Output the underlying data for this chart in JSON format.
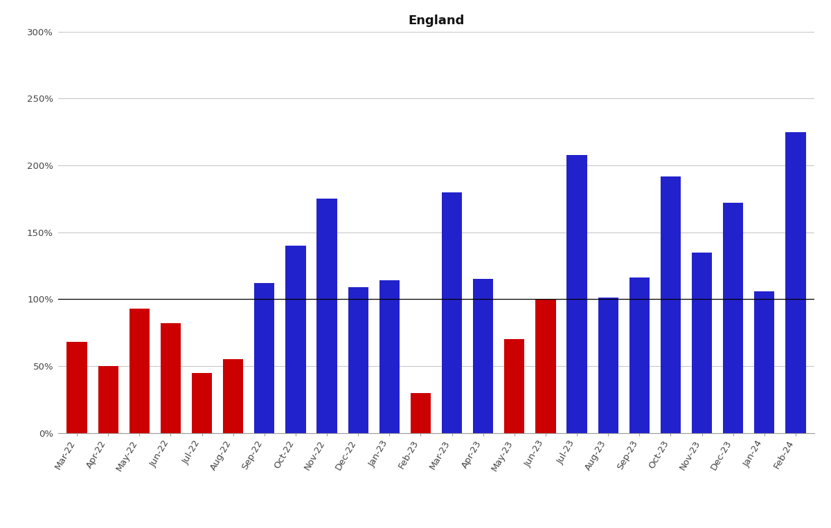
{
  "title": "England",
  "categories": [
    "Mar-22",
    "Apr-22",
    "May-22",
    "Jun-22",
    "Jul-22",
    "Aug-22",
    "Sep-22",
    "Oct-22",
    "Nov-22",
    "Dec-22",
    "Jan-23",
    "Feb-23",
    "Mar-23",
    "Apr-23",
    "May-23",
    "Jun-23",
    "Jul-23",
    "Aug-23",
    "Sep-23",
    "Oct-23",
    "Nov-23",
    "Dec-23",
    "Jan-24",
    "Feb-24"
  ],
  "values": [
    68,
    50,
    93,
    82,
    45,
    55,
    112,
    140,
    175,
    109,
    114,
    30,
    180,
    115,
    70,
    100,
    208,
    101,
    116,
    192,
    135,
    172,
    106,
    225
  ],
  "colors": [
    "#cc0000",
    "#cc0000",
    "#cc0000",
    "#cc0000",
    "#cc0000",
    "#cc0000",
    "#2222cc",
    "#2222cc",
    "#2222cc",
    "#2222cc",
    "#2222cc",
    "#cc0000",
    "#2222cc",
    "#2222cc",
    "#cc0000",
    "#cc0000",
    "#2222cc",
    "#2222cc",
    "#2222cc",
    "#2222cc",
    "#2222cc",
    "#2222cc",
    "#2222cc",
    "#2222cc"
  ],
  "ylim": [
    0,
    300
  ],
  "yticks": [
    0,
    50,
    100,
    150,
    200,
    250,
    300
  ],
  "ytick_labels": [
    "0%",
    "50%",
    "100%",
    "150%",
    "200%",
    "250%",
    "300%"
  ],
  "background_color": "#ffffff",
  "grid_color": "#c8c8c8",
  "bar_width": 0.65,
  "title_fontsize": 13,
  "tick_fontsize": 9.5
}
